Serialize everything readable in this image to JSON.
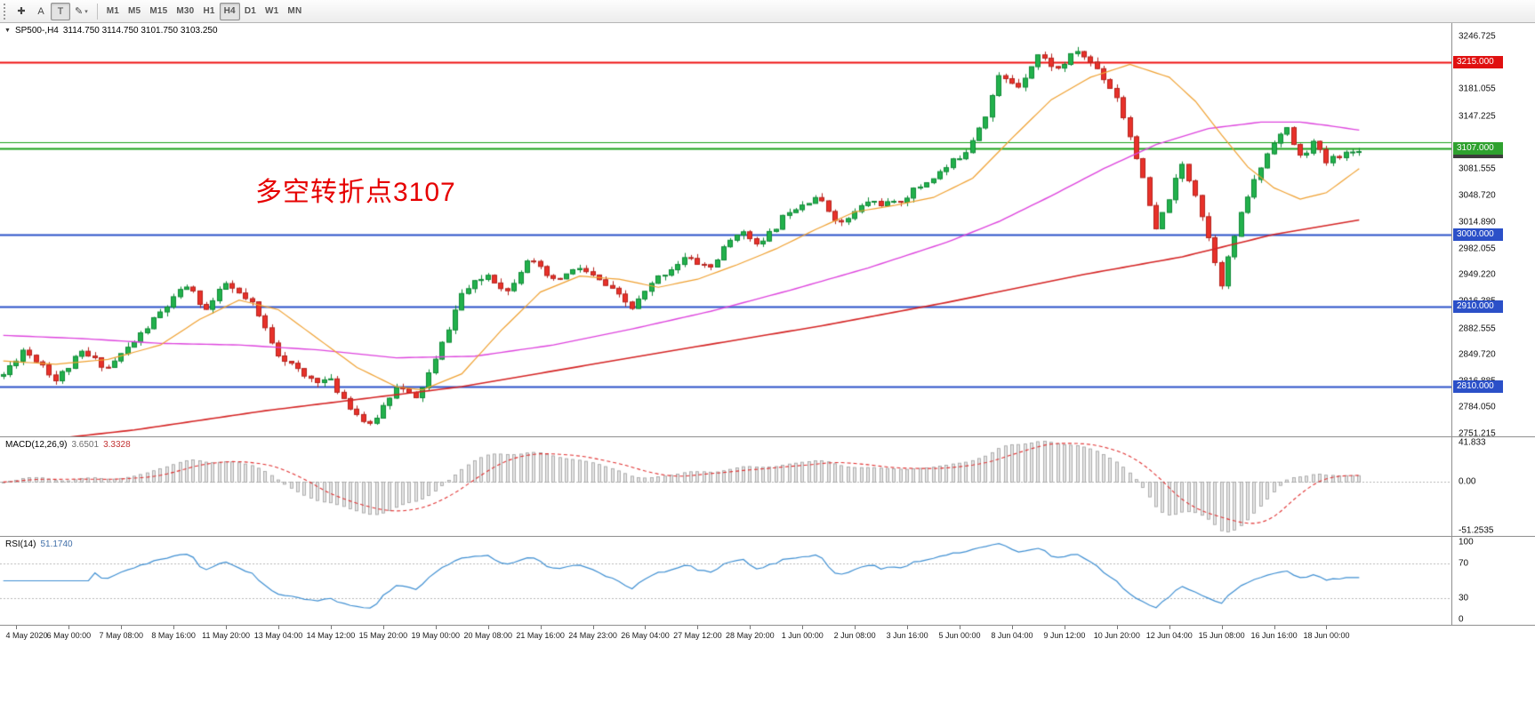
{
  "toolbar": {
    "tools": [
      {
        "name": "crosshair-tool",
        "glyph": "✚"
      },
      {
        "name": "text-tool",
        "glyph": "A"
      },
      {
        "name": "label-tool",
        "glyph": "T",
        "active": true
      },
      {
        "name": "draw-tool",
        "glyph": "✎",
        "caret": "▾"
      }
    ],
    "timeframes": [
      {
        "label": "M1"
      },
      {
        "label": "M5"
      },
      {
        "label": "M15"
      },
      {
        "label": "M30"
      },
      {
        "label": "H1"
      },
      {
        "label": "H4",
        "active": true
      },
      {
        "label": "D1"
      },
      {
        "label": "W1"
      },
      {
        "label": "MN"
      }
    ]
  },
  "chart": {
    "collapse_glyph": "▼",
    "symbol": "SP500-,H4",
    "ohlc": "3114.750 3114.750 3101.750 3103.250",
    "annotation": "多空转折点3107",
    "annotation_color": "#e60000",
    "axis_ticks": [
      3246.725,
      3181.055,
      3147.225,
      3081.555,
      3048.72,
      3014.89,
      2982.055,
      2949.22,
      2916.385,
      2882.555,
      2849.72,
      2816.885,
      2784.05,
      2751.215
    ],
    "hlines": [
      {
        "price": 3215.0,
        "color": "#ee1111",
        "width": 2,
        "badge": "3215.000",
        "badge_bg": "#e01010",
        "badge_z": 2
      },
      {
        "price": 3114.75,
        "color": "#18a018",
        "width": 1
      },
      {
        "price": 3107.0,
        "color": "#18a018",
        "width": 2,
        "badge": "3107.000",
        "badge_bg": "#2fa12f",
        "badge_z": 3
      },
      {
        "price": 3103.25,
        "badge": "3103.250",
        "badge_bg": "#3c3c3c",
        "badge_z": 2
      },
      {
        "price": 3000.0,
        "color": "#2b50c8",
        "width": 2,
        "badge": "3000.000",
        "badge_bg": "#2b50c8",
        "badge_z": 2
      },
      {
        "price": 2910.0,
        "color": "#2b50c8",
        "width": 2,
        "badge": "2910.000",
        "badge_bg": "#2b50c8",
        "badge_z": 2
      },
      {
        "price": 2810.0,
        "color": "#2b50c8",
        "width": 2,
        "badge": "2810.000",
        "badge_bg": "#2b50c8",
        "badge_z": 2
      }
    ]
  },
  "chart_data": {
    "type": "candlestick",
    "title": "SP500-,H4",
    "timeframe": "H4",
    "n_candles": 208,
    "seed": 11,
    "noise": 4.5,
    "wick": 6,
    "right_gap": 100,
    "last_close": 3103.25,
    "y_range": [
      2748,
      3263.5
    ],
    "price_anchors": [
      [
        0,
        2825
      ],
      [
        3,
        2856
      ],
      [
        6,
        2838
      ],
      [
        8,
        2818
      ],
      [
        12,
        2852
      ],
      [
        16,
        2834
      ],
      [
        20,
        2866
      ],
      [
        24,
        2902
      ],
      [
        28,
        2936
      ],
      [
        31,
        2906
      ],
      [
        34,
        2938
      ],
      [
        38,
        2912
      ],
      [
        42,
        2852
      ],
      [
        46,
        2822
      ],
      [
        50,
        2816
      ],
      [
        54,
        2776
      ],
      [
        56,
        2760
      ],
      [
        60,
        2812
      ],
      [
        63,
        2794
      ],
      [
        66,
        2842
      ],
      [
        70,
        2926
      ],
      [
        74,
        2950
      ],
      [
        77,
        2929
      ],
      [
        80,
        2970
      ],
      [
        84,
        2941
      ],
      [
        88,
        2958
      ],
      [
        92,
        2936
      ],
      [
        96,
        2908
      ],
      [
        100,
        2946
      ],
      [
        104,
        2970
      ],
      [
        108,
        2959
      ],
      [
        112,
        3003
      ],
      [
        116,
        2989
      ],
      [
        120,
        3031
      ],
      [
        124,
        3047
      ],
      [
        128,
        3013
      ],
      [
        132,
        3041
      ],
      [
        136,
        3037
      ],
      [
        140,
        3060
      ],
      [
        144,
        3083
      ],
      [
        147,
        3105
      ],
      [
        150,
        3150
      ],
      [
        152,
        3196
      ],
      [
        155,
        3186
      ],
      [
        158,
        3224
      ],
      [
        161,
        3206
      ],
      [
        164,
        3229
      ],
      [
        167,
        3207
      ],
      [
        170,
        3172
      ],
      [
        173,
        3098
      ],
      [
        176,
        3004
      ],
      [
        178,
        3046
      ],
      [
        180,
        3086
      ],
      [
        182,
        3052
      ],
      [
        184,
        2996
      ],
      [
        186,
        2940
      ],
      [
        188,
        2998
      ],
      [
        190,
        3048
      ],
      [
        192,
        3084
      ],
      [
        194,
        3118
      ],
      [
        196,
        3130
      ],
      [
        198,
        3096
      ],
      [
        200,
        3114
      ],
      [
        202,
        3090
      ],
      [
        204,
        3100
      ],
      [
        207,
        3103
      ]
    ],
    "ma_fast": {
      "color": "#efa030",
      "width": 1.2,
      "anchors": [
        [
          0,
          2842
        ],
        [
          8,
          2838
        ],
        [
          16,
          2844
        ],
        [
          24,
          2862
        ],
        [
          30,
          2894
        ],
        [
          36,
          2918
        ],
        [
          42,
          2906
        ],
        [
          48,
          2870
        ],
        [
          54,
          2834
        ],
        [
          60,
          2810
        ],
        [
          64,
          2806
        ],
        [
          70,
          2826
        ],
        [
          76,
          2880
        ],
        [
          82,
          2928
        ],
        [
          88,
          2948
        ],
        [
          94,
          2944
        ],
        [
          100,
          2934
        ],
        [
          106,
          2944
        ],
        [
          112,
          2962
        ],
        [
          118,
          2982
        ],
        [
          124,
          3006
        ],
        [
          130,
          3028
        ],
        [
          136,
          3036
        ],
        [
          142,
          3046
        ],
        [
          148,
          3070
        ],
        [
          154,
          3120
        ],
        [
          160,
          3168
        ],
        [
          166,
          3196
        ],
        [
          172,
          3212
        ],
        [
          178,
          3196
        ],
        [
          182,
          3166
        ],
        [
          186,
          3124
        ],
        [
          190,
          3084
        ],
        [
          194,
          3058
        ],
        [
          198,
          3044
        ],
        [
          202,
          3052
        ],
        [
          207,
          3082
        ]
      ]
    },
    "ma_mid": {
      "color": "#dd44dd",
      "width": 1.4,
      "anchors": [
        [
          0,
          2874
        ],
        [
          12,
          2870
        ],
        [
          24,
          2864
        ],
        [
          36,
          2862
        ],
        [
          48,
          2856
        ],
        [
          60,
          2846
        ],
        [
          72,
          2848
        ],
        [
          84,
          2862
        ],
        [
          96,
          2882
        ],
        [
          108,
          2904
        ],
        [
          120,
          2930
        ],
        [
          132,
          2958
        ],
        [
          144,
          2990
        ],
        [
          152,
          3016
        ],
        [
          160,
          3048
        ],
        [
          168,
          3082
        ],
        [
          176,
          3112
        ],
        [
          184,
          3132
        ],
        [
          192,
          3140
        ],
        [
          198,
          3140
        ],
        [
          202,
          3136
        ],
        [
          207,
          3130
        ]
      ]
    },
    "ma_slow": {
      "color": "#d42424",
      "width": 1.6,
      "anchors": [
        [
          0,
          2738
        ],
        [
          20,
          2756
        ],
        [
          40,
          2780
        ],
        [
          70,
          2810
        ],
        [
          100,
          2852
        ],
        [
          125,
          2886
        ],
        [
          144,
          2915
        ],
        [
          165,
          2950
        ],
        [
          180,
          2972
        ],
        [
          194,
          3000
        ],
        [
          207,
          3018
        ]
      ]
    },
    "colors": {
      "bull": "#22b14c",
      "bull_stroke": "#0f8a36",
      "bear": "#e8312a",
      "bear_stroke": "#b5231d"
    }
  },
  "macd": {
    "name": "MACD(12,26,9)",
    "value_main": "3.6501",
    "value_signal": "3.3328",
    "params": {
      "fast": 12,
      "slow": 26,
      "signal": 9
    },
    "scale_max": 41.833,
    "scale_min": -51.2535,
    "axis": [
      {
        "v": 41.833,
        "label": "41.833"
      },
      {
        "v": 0,
        "label": "0.00"
      },
      {
        "v": -51.2535,
        "label": "-51.2535"
      }
    ],
    "hist_fill": "#e4e4e4",
    "hist_stroke": "#9f9f9f",
    "signal_color": "#e03030"
  },
  "rsi": {
    "name": "RSI(14)",
    "value": "51.1740",
    "period": 14,
    "line_color": "#3f8fd2",
    "levels": [
      70,
      30
    ],
    "axis": [
      {
        "v": 100,
        "label": "100"
      },
      {
        "v": 70,
        "label": "70"
      },
      {
        "v": 30,
        "label": "30"
      },
      {
        "v": 0,
        "label": "0"
      }
    ]
  },
  "time_axis": {
    "first_label_idx": 2,
    "label_step": 8,
    "labels": [
      "4 May 2020",
      "6 May 00:00",
      "7 May 08:00",
      "8 May 16:00",
      "11 May 20:00",
      "13 May 04:00",
      "14 May 12:00",
      "15 May 20:00",
      "19 May 00:00",
      "20 May 08:00",
      "21 May 16:00",
      "24 May 23:00",
      "26 May 04:00",
      "27 May 12:00",
      "28 May 20:00",
      "1 Jun 00:00",
      "2 Jun 08:00",
      "3 Jun 16:00",
      "5 Jun 00:00",
      "8 Jun 04:00",
      "9 Jun 12:00",
      "10 Jun 20:00",
      "12 Jun 04:00",
      "15 Jun 08:00",
      "16 Jun 16:00",
      "18 Jun 00:00"
    ]
  }
}
